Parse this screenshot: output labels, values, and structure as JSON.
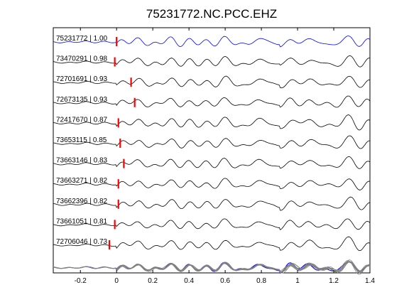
{
  "chart_data": {
    "type": "line",
    "title": "75231772.NC.PCC.EHZ",
    "xlabel": "",
    "ylabel": "",
    "xlim": [
      -0.35,
      1.4
    ],
    "x_ticks": [
      -0.2,
      0,
      0.2,
      0.4,
      0.6,
      0.8,
      1,
      1.2,
      1.4
    ],
    "x_tick_labels": [
      "-0.2",
      "0",
      "0.2",
      "0.4",
      "0.6",
      "0.8",
      "1",
      "1.2",
      "1.4"
    ],
    "grid": false,
    "colors": {
      "master": "#0000ff",
      "trace": "#000000",
      "pick": "#ff0000",
      "overlay": "#808080"
    },
    "traces": [
      {
        "label": "75231772 | 1.00",
        "pick": 0.0,
        "master": true
      },
      {
        "label": "73470291 | 0.98",
        "pick": -0.01
      },
      {
        "label": "72701691 | 0.93",
        "pick": 0.08
      },
      {
        "label": "72673135 | 0.93",
        "pick": 0.1
      },
      {
        "label": "72417670 | 0.87",
        "pick": 0.01
      },
      {
        "label": "73653115 | 0.85",
        "pick": 0.02
      },
      {
        "label": "73663146 | 0.83",
        "pick": 0.04
      },
      {
        "label": "73663271 | 0.82",
        "pick": 0.01
      },
      {
        "label": "73662396 | 0.82",
        "pick": 0.01
      },
      {
        "label": "73661051 | 0.81",
        "pick": -0.01
      },
      {
        "label": "72706046 | 0.73",
        "pick": -0.04
      }
    ],
    "stack": {
      "label": ""
    }
  }
}
